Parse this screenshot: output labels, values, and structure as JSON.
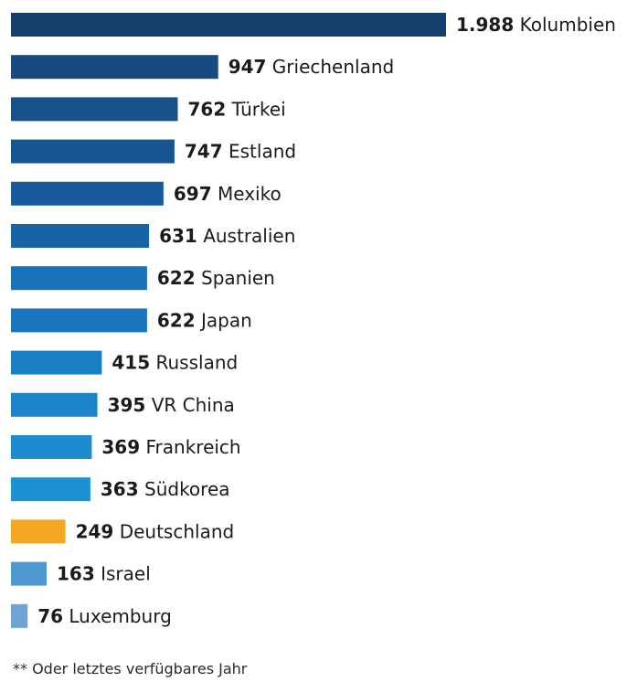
{
  "chart_data": {
    "type": "bar",
    "orientation": "horizontal",
    "categories": [
      "Kolumbien",
      "Griechenland",
      "Türkei",
      "Estland",
      "Mexiko",
      "Australien",
      "Spanien",
      "Japan",
      "Russland",
      "VR China",
      "Frankreich",
      "Südkorea",
      "Deutschland",
      "Israel",
      "Luxemburg"
    ],
    "values": [
      1988,
      947,
      762,
      747,
      697,
      631,
      622,
      622,
      415,
      395,
      369,
      363,
      249,
      163,
      76
    ],
    "value_labels": [
      "1.988",
      "947",
      "762",
      "747",
      "697",
      "631",
      "622",
      "622",
      "415",
      "395",
      "369",
      "363",
      "249",
      "163",
      "76"
    ],
    "colors": [
      "#163f6e",
      "#174a7e",
      "#17508a",
      "#175592",
      "#175b9c",
      "#1763a6",
      "#1a73b8",
      "#1a76bc",
      "#1b7fc4",
      "#1c84c8",
      "#1c8ccd",
      "#1e92d1",
      "#f5a623",
      "#4f97cf",
      "#6ea3d6"
    ],
    "highlight": "Deutschland",
    "xlim": [
      0,
      1988
    ]
  },
  "footnote": "** Oder letztes verfügbares Jahr"
}
